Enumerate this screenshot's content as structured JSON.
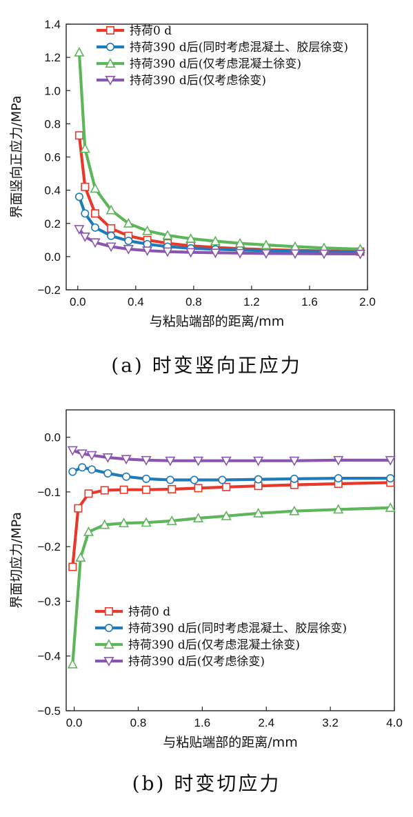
{
  "chart_data": [
    {
      "type": "line",
      "caption": "(a) 时变竖向正应力",
      "xlabel": "与粘贴端部的距离/mm",
      "ylabel": "界面竖向正应力/MPa",
      "xlim": [
        -0.08,
        2.0
      ],
      "ylim": [
        -0.2,
        1.4
      ],
      "xticks": [
        0.0,
        0.4,
        0.8,
        1.2,
        1.6,
        2.0
      ],
      "xtick_labels": [
        "0.0",
        "0.4",
        "0.8",
        "1.2",
        "1.6",
        "2.0"
      ],
      "yticks": [
        -0.2,
        0.0,
        0.2,
        0.4,
        0.6,
        0.8,
        1.0,
        1.2,
        1.4
      ],
      "ytick_labels": [
        "−0.2",
        "0.0",
        "0.2",
        "0.4",
        "0.6",
        "0.8",
        "1.0",
        "1.2",
        "1.4"
      ],
      "legend_position": "top-left",
      "grid": false,
      "series": [
        {
          "name": "持荷0 d",
          "color": "#e8382a",
          "marker": "square",
          "x": [
            0.01,
            0.05,
            0.12,
            0.23,
            0.35,
            0.48,
            0.62,
            0.78,
            0.95,
            1.12,
            1.3,
            1.5,
            1.7,
            1.95
          ],
          "y": [
            0.73,
            0.42,
            0.26,
            0.17,
            0.125,
            0.1,
            0.08,
            0.065,
            0.055,
            0.048,
            0.042,
            0.038,
            0.034,
            0.03
          ]
        },
        {
          "name": "持荷390 d后(同时考虑混凝土、胶层徐变)",
          "color": "#1e7ab8",
          "marker": "circle",
          "x": [
            0.01,
            0.05,
            0.12,
            0.23,
            0.35,
            0.48,
            0.62,
            0.78,
            0.95,
            1.12,
            1.3,
            1.5,
            1.7,
            1.95
          ],
          "y": [
            0.36,
            0.26,
            0.175,
            0.125,
            0.095,
            0.075,
            0.06,
            0.05,
            0.044,
            0.04,
            0.036,
            0.032,
            0.03,
            0.028
          ]
        },
        {
          "name": "持荷390 d后(仅考虑混凝土徐变)",
          "color": "#5db65a",
          "marker": "triangle-up",
          "x": [
            0.01,
            0.05,
            0.12,
            0.23,
            0.35,
            0.48,
            0.62,
            0.78,
            0.95,
            1.12,
            1.3,
            1.5,
            1.7,
            1.95
          ],
          "y": [
            1.23,
            0.65,
            0.41,
            0.28,
            0.2,
            0.155,
            0.128,
            0.108,
            0.093,
            0.08,
            0.07,
            0.06,
            0.052,
            0.045
          ]
        },
        {
          "name": "持荷390 d后(仅考虑徐变)",
          "color": "#8a55ae",
          "marker": "triangle-down",
          "x": [
            0.01,
            0.05,
            0.12,
            0.23,
            0.35,
            0.48,
            0.62,
            0.78,
            0.95,
            1.12,
            1.3,
            1.5,
            1.7,
            1.95
          ],
          "y": [
            0.165,
            0.12,
            0.085,
            0.06,
            0.045,
            0.036,
            0.03,
            0.026,
            0.023,
            0.021,
            0.019,
            0.018,
            0.017,
            0.016
          ]
        }
      ]
    },
    {
      "type": "line",
      "caption": "(b) 时变切应力",
      "xlabel": "与粘贴端部的距离/mm",
      "ylabel": "界面切应力/MPa",
      "xlim": [
        -0.1,
        4.0
      ],
      "ylim": [
        -0.5,
        0.05
      ],
      "xticks": [
        0.0,
        0.8,
        1.6,
        2.4,
        3.2,
        4.0
      ],
      "xtick_labels": [
        "0.0",
        "0.8",
        "1.6",
        "2.4",
        "3.2",
        "4.0"
      ],
      "yticks": [
        -0.5,
        -0.4,
        -0.3,
        -0.2,
        -0.1,
        0.0
      ],
      "ytick_labels": [
        "−0.5",
        "−0.4",
        "−0.3",
        "−0.2",
        "−0.1",
        "0.0"
      ],
      "legend_position": "bottom-left",
      "grid": false,
      "series": [
        {
          "name": "持荷0 d",
          "color": "#e8382a",
          "marker": "square",
          "x": [
            -0.02,
            0.05,
            0.18,
            0.38,
            0.62,
            0.9,
            1.22,
            1.55,
            1.9,
            2.3,
            2.75,
            3.3,
            3.95
          ],
          "y": [
            -0.237,
            -0.13,
            -0.103,
            -0.097,
            -0.096,
            -0.096,
            -0.095,
            -0.093,
            -0.091,
            -0.089,
            -0.087,
            -0.085,
            -0.083
          ]
        },
        {
          "name": "持荷390 d后(同时考虑混凝土、胶层徐变)",
          "color": "#1e7ab8",
          "marker": "circle",
          "x": [
            -0.02,
            0.1,
            0.22,
            0.42,
            0.65,
            0.9,
            1.2,
            1.5,
            1.85,
            2.3,
            2.75,
            3.3,
            3.95
          ],
          "y": [
            -0.063,
            -0.055,
            -0.059,
            -0.066,
            -0.072,
            -0.076,
            -0.078,
            -0.078,
            -0.078,
            -0.077,
            -0.076,
            -0.075,
            -0.075
          ]
        },
        {
          "name": "持荷390 d后(仅考虑混凝土徐变)",
          "color": "#5db65a",
          "marker": "triangle-up",
          "x": [
            -0.02,
            0.08,
            0.18,
            0.38,
            0.62,
            0.9,
            1.22,
            1.55,
            1.9,
            2.3,
            2.75,
            3.3,
            3.95
          ],
          "y": [
            -0.415,
            -0.22,
            -0.173,
            -0.16,
            -0.157,
            -0.156,
            -0.153,
            -0.148,
            -0.144,
            -0.139,
            -0.135,
            -0.132,
            -0.129
          ]
        },
        {
          "name": "持荷390 d后(仅考虑徐变)",
          "color": "#8a55ae",
          "marker": "triangle-down",
          "x": [
            -0.02,
            0.1,
            0.22,
            0.42,
            0.65,
            0.9,
            1.2,
            1.55,
            1.9,
            2.3,
            2.75,
            3.3,
            3.95
          ],
          "y": [
            -0.024,
            -0.03,
            -0.033,
            -0.037,
            -0.04,
            -0.042,
            -0.043,
            -0.043,
            -0.043,
            -0.043,
            -0.043,
            -0.042,
            -0.042
          ]
        }
      ]
    }
  ]
}
